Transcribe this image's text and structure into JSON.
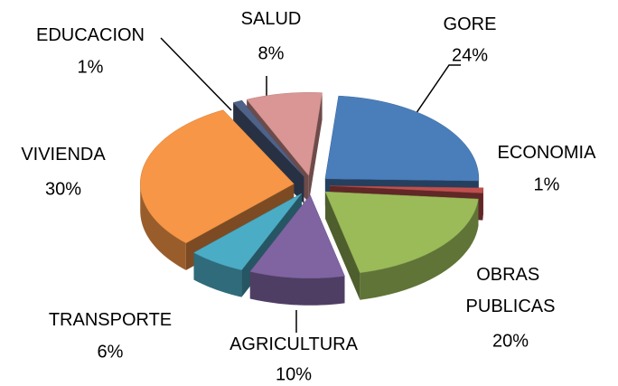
{
  "chart_data": {
    "type": "pie3d",
    "categories": [
      "GORE",
      "ECONOMIA",
      "OBRAS PUBLICAS",
      "AGRICULTURA",
      "TRANSPORTE",
      "VIVIENDA",
      "EDUCACION",
      "SALUD"
    ],
    "values": [
      24,
      1,
      20,
      10,
      6,
      30,
      1,
      8
    ],
    "value_labels": [
      "24%",
      "1%",
      "20%",
      "10%",
      "6%",
      "30%",
      "1%",
      "8%"
    ],
    "colors": [
      "#4a7ebb",
      "#c0504d",
      "#9bbb59",
      "#8064a2",
      "#4bacc6",
      "#f79646",
      "#4f6288",
      "#d99694"
    ]
  }
}
